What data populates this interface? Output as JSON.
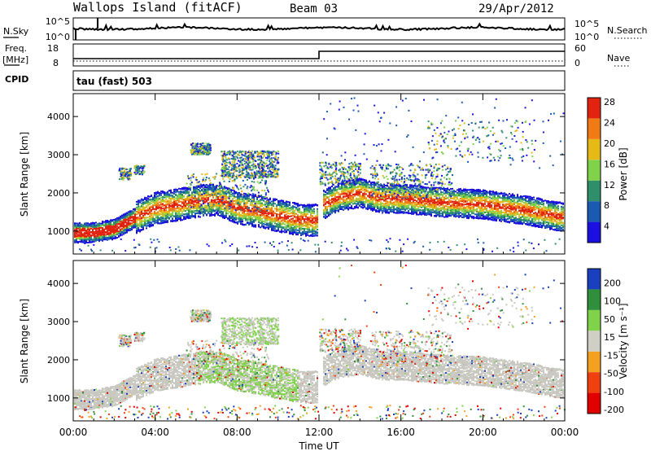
{
  "header": {
    "station": "Wallops Island (fitACF)",
    "beam": "Beam 03",
    "date": "29/Apr/2012"
  },
  "panels": {
    "noise": {
      "left_label": "N.Sky",
      "right_label": "N.Search",
      "left_ticks": [
        "10^5",
        "10^0"
      ],
      "right_ticks": [
        "10^5",
        "10^0"
      ]
    },
    "freq": {
      "left_label_1": "Freq.",
      "left_label_2": "[MHz]",
      "right_label": "Nave",
      "left_ticks": [
        "18",
        "8"
      ],
      "right_ticks": [
        "60",
        "0"
      ]
    },
    "cpid": {
      "label": "CPID",
      "text": "tau (fast) 503"
    }
  },
  "colors": {
    "power": [
      "#1c10e0",
      "#1a5ab0",
      "#2f8f6a",
      "#7fd24a",
      "#e6ba16",
      "#f07a14",
      "#e22310"
    ],
    "velocity_bar": [
      "#e00000",
      "#f04010",
      "#f4a020",
      "#cfcfc6",
      "#7fd24a",
      "#2f8f3a",
      "#1a40c0"
    ],
    "ground_scatter": "#c8c8c0"
  },
  "chart_data": [
    {
      "type": "heatmap",
      "panel": "power",
      "ylabel": "Slant Range [km]",
      "y_ticks": [
        1000,
        2000,
        3000,
        4000
      ],
      "ylim": [
        400,
        4600
      ],
      "xlim_hours": [
        0,
        24
      ],
      "colorbar": {
        "label": "Power [dB]",
        "ticks": [
          4,
          8,
          12,
          16,
          20,
          24,
          28
        ]
      },
      "main_echo_band_km": [
        [
          0,
          950
        ],
        [
          1,
          960
        ],
        [
          2,
          1050
        ],
        [
          3,
          1350
        ],
        [
          4,
          1600
        ],
        [
          5,
          1680
        ],
        [
          6,
          1780
        ],
        [
          7,
          1830
        ],
        [
          8,
          1600
        ],
        [
          9,
          1520
        ],
        [
          10,
          1400
        ],
        [
          11,
          1300
        ],
        [
          11.9,
          1280
        ],
        [
          12.2,
          1700
        ],
        [
          13,
          1900
        ],
        [
          14,
          2000
        ],
        [
          15,
          1850
        ],
        [
          16,
          1850
        ],
        [
          17,
          1800
        ],
        [
          18,
          1750
        ],
        [
          19,
          1720
        ],
        [
          20,
          1700
        ],
        [
          21,
          1620
        ],
        [
          22,
          1550
        ],
        [
          23,
          1450
        ],
        [
          24,
          1350
        ]
      ]
    },
    {
      "type": "heatmap",
      "panel": "velocity",
      "ylabel": "Slant Range [km]",
      "xlabel": "Time UT",
      "y_ticks": [
        1000,
        2000,
        3000,
        4000
      ],
      "ylim": [
        400,
        4600
      ],
      "xlim_hours": [
        0,
        24
      ],
      "x_tick_labels": [
        "00:00",
        "04:00",
        "08:00",
        "12:00",
        "16:00",
        "20:00",
        "00:00"
      ],
      "colorbar": {
        "label": "Velocity [m s⁻¹]",
        "ticks": [
          "200",
          "100",
          "50",
          "15",
          "-15",
          "-50",
          "-100",
          "-200"
        ]
      }
    }
  ]
}
